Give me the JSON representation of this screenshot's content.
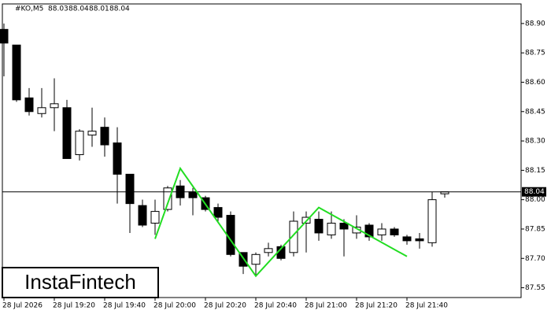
{
  "chart_data": {
    "type": "candlestick",
    "title": "#KO,M5",
    "categories": [
      "28 Jul 2026",
      null,
      null,
      null,
      "28 Jul 19:20",
      null,
      null,
      null,
      "28 Jul 19:40",
      null,
      null,
      null,
      "28 Jul 20:00",
      null,
      null,
      null,
      "28 Jul 20:20",
      null,
      null,
      null,
      "28 Jul 20:40",
      null,
      null,
      null,
      "28 Jul 21:00",
      null,
      null,
      null,
      "28 Jul 21:20",
      null,
      null,
      null,
      "28 Jul 21:40",
      null,
      null,
      null
    ],
    "open": [
      88.87,
      88.79,
      88.52,
      88.44,
      88.47,
      88.47,
      88.23,
      88.33,
      88.37,
      88.29,
      88.13,
      87.97,
      87.88,
      87.95,
      88.07,
      88.04,
      88.01,
      87.96,
      87.92,
      87.73,
      87.67,
      87.73,
      87.76,
      87.73,
      87.88,
      87.9,
      87.82,
      87.88,
      87.83,
      87.87,
      87.82,
      87.85,
      87.81,
      87.8,
      87.78,
      88.03
    ],
    "high": [
      88.9,
      88.79,
      88.57,
      88.57,
      88.62,
      88.51,
      88.36,
      88.47,
      88.42,
      88.37,
      88.13,
      88.0,
      88.0,
      88.07,
      88.1,
      88.06,
      88.02,
      87.98,
      87.94,
      87.73,
      87.73,
      87.78,
      87.77,
      87.94,
      87.94,
      87.94,
      87.94,
      87.9,
      87.92,
      87.88,
      87.88,
      87.86,
      87.82,
      87.83,
      88.04,
      88.04
    ],
    "low": [
      88.63,
      88.5,
      88.43,
      88.42,
      88.35,
      88.21,
      88.2,
      88.27,
      88.22,
      87.98,
      87.83,
      87.86,
      87.82,
      87.94,
      87.97,
      87.92,
      87.94,
      87.89,
      87.71,
      87.62,
      87.61,
      87.71,
      87.69,
      87.71,
      87.73,
      87.79,
      87.8,
      87.71,
      87.8,
      87.79,
      87.79,
      87.81,
      87.77,
      87.75,
      87.76,
      88.01
    ],
    "close": [
      88.8,
      88.51,
      88.45,
      88.47,
      88.49,
      88.21,
      88.35,
      88.35,
      88.28,
      88.13,
      87.98,
      87.87,
      87.94,
      88.06,
      88.01,
      88.01,
      87.95,
      87.91,
      87.72,
      87.66,
      87.72,
      87.75,
      87.7,
      87.89,
      87.91,
      87.83,
      87.88,
      87.85,
      87.86,
      87.81,
      87.85,
      87.82,
      87.79,
      87.79,
      88.0,
      88.04
    ],
    "ylim": [
      87.5,
      89.0
    ],
    "yticks": [
      {
        "value": 88.9,
        "label": "88.90"
      },
      88.75,
      {
        "value": 88.6,
        "label": "88.60"
      },
      88.45,
      {
        "value": 88.3,
        "label": "88.30"
      },
      88.15,
      {
        "value": 88.0,
        "label": "88.00"
      },
      87.85,
      {
        "value": 87.7,
        "label": "87.70"
      },
      87.55
    ],
    "last_price": 88.04,
    "pattern": {
      "color": "#22dd22",
      "x": [
        12,
        14,
        20,
        25,
        32
      ],
      "values": [
        87.8,
        88.16,
        87.61,
        87.96,
        87.71
      ]
    },
    "watermark": "InstaFintech"
  }
}
